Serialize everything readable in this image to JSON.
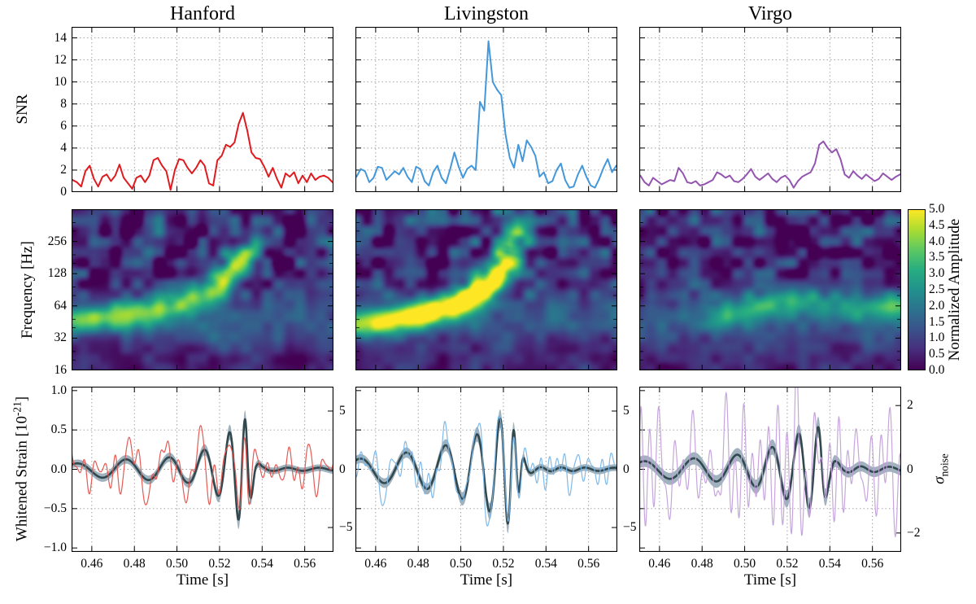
{
  "figure": {
    "background": "#ffffff",
    "columns": [
      {
        "title": "Hanford",
        "color": "#df1b1f",
        "noisy_color": "#e4524c"
      },
      {
        "title": "Livingston",
        "color": "#4298db",
        "noisy_color": "#79b6e8"
      },
      {
        "title": "Virgo",
        "color": "#9355b0",
        "noisy_color": "#c3a1da"
      }
    ]
  },
  "chart_data": {
    "type": "heatmap",
    "description": "3x3 multi-panel gravitational-wave detection figure: rows = matched-filter SNR (line), time-frequency normalized amplitude (heatmap, viridis), whitened strain with waveform reconstruction (line); columns = Hanford, Livingston, Virgo detectors",
    "time_axis": {
      "label": "Time [s]",
      "lim": [
        0.4505,
        0.5735
      ],
      "ticks": [
        0.46,
        0.48,
        0.5,
        0.52,
        0.54,
        0.56
      ],
      "tick_labels": [
        "0.46",
        "0.48",
        "0.50",
        "0.52",
        "0.54",
        "0.56"
      ]
    },
    "snr_row": {
      "type": "line",
      "ylabel": "SNR",
      "ylim": [
        0,
        15
      ],
      "yticks": [
        0,
        2,
        4,
        6,
        8,
        10,
        12,
        14
      ],
      "grid": true,
      "t0": 0.451,
      "dt": 0.002,
      "series": [
        {
          "detector": "Hanford",
          "peak_snr": 7.2,
          "peak_time": 0.531,
          "values": [
            1.1,
            0.9,
            0.5,
            1.9,
            2.4,
            1.2,
            0.5,
            1.4,
            1.6,
            1.0,
            1.5,
            2.5,
            1.3,
            0.8,
            0.3,
            1.3,
            1.5,
            0.9,
            1.5,
            2.9,
            3.1,
            2.4,
            1.9,
            0.2,
            2.0,
            3.0,
            2.9,
            2.2,
            1.7,
            2.2,
            2.9,
            2.4,
            0.8,
            0.6,
            2.9,
            3.3,
            4.3,
            4.1,
            4.5,
            6.2,
            7.2,
            5.6,
            3.6,
            3.1,
            3.0,
            2.3,
            1.4,
            2.2,
            1.2,
            0.4,
            1.7,
            1.4,
            1.8,
            0.8,
            1.5,
            0.9,
            1.7,
            1.1,
            1.4,
            1.5,
            1.3,
            0.9
          ]
        },
        {
          "detector": "Livingston",
          "peak_snr": 13.7,
          "peak_time": 0.513,
          "values": [
            1.4,
            2.1,
            1.9,
            0.9,
            1.3,
            2.3,
            2.2,
            1.1,
            1.5,
            1.9,
            1.6,
            2.2,
            1.4,
            0.9,
            2.3,
            2.1,
            1.0,
            0.6,
            1.8,
            2.4,
            1.3,
            0.8,
            2.1,
            3.6,
            2.3,
            1.3,
            2.1,
            2.4,
            2.0,
            8.2,
            7.4,
            13.7,
            10.0,
            9.3,
            8.8,
            5.2,
            3.1,
            2.2,
            4.3,
            2.8,
            4.7,
            4.1,
            3.3,
            1.4,
            1.8,
            0.8,
            1.0,
            2.0,
            2.6,
            1.1,
            0.4,
            0.5,
            1.6,
            2.4,
            1.4,
            0.6,
            0.4,
            1.2,
            2.2,
            3.0,
            1.8,
            2.4
          ]
        },
        {
          "detector": "Virgo",
          "peak_snr": 4.6,
          "peak_time": 0.537,
          "values": [
            1.5,
            0.9,
            0.6,
            1.3,
            1.0,
            0.7,
            0.9,
            1.1,
            1.0,
            2.2,
            1.7,
            0.9,
            0.8,
            1.0,
            0.6,
            0.7,
            0.9,
            1.1,
            1.8,
            1.6,
            1.3,
            1.5,
            1.0,
            0.9,
            1.2,
            1.6,
            2.1,
            1.4,
            1.1,
            1.4,
            1.7,
            1.2,
            0.9,
            1.3,
            1.5,
            1.1,
            0.4,
            1.0,
            1.4,
            1.6,
            1.8,
            2.6,
            4.3,
            4.6,
            4.0,
            3.6,
            3.9,
            3.0,
            1.6,
            1.3,
            1.9,
            1.5,
            1.2,
            1.6,
            1.3,
            1.0,
            1.2,
            1.7,
            1.4,
            1.1,
            1.4,
            1.6
          ]
        }
      ]
    },
    "spectrogram_row": {
      "type": "heatmap",
      "ylabel": "Frequency [Hz]",
      "yscale": "log2",
      "ylim_hz": [
        16,
        512
      ],
      "yticks": [
        16,
        32,
        64,
        128,
        256
      ],
      "minor_ticks_hz": [
        20,
        24,
        40,
        48,
        80,
        96,
        160,
        192,
        320,
        384
      ],
      "colorbar": {
        "label": "Normalized Amplitude",
        "min": 0,
        "max": 5,
        "colormap": "viridis",
        "tick_labels": [
          "5.0",
          "4.5",
          "4.0",
          "3.5",
          "3.0",
          "2.5",
          "2.0",
          "1.5",
          "1.0",
          "0.5",
          "0.0"
        ]
      },
      "panels": [
        {
          "detector": "Hanford",
          "noise_seed": 11,
          "mottle": 1.0,
          "base": 1.0,
          "chirp_track": [
            [
              0.452,
              46,
              2.6
            ],
            [
              0.468,
              50,
              2.7
            ],
            [
              0.486,
              55,
              2.8
            ],
            [
              0.5,
              62,
              2.6
            ],
            [
              0.51,
              74,
              2.8
            ],
            [
              0.518,
              95,
              3.2
            ],
            [
              0.523,
              120,
              3.8
            ],
            [
              0.527,
              148,
              4.3
            ],
            [
              0.53,
              168,
              4.1
            ],
            [
              0.533,
              190,
              3.0
            ],
            [
              0.536,
              220,
              1.8
            ]
          ]
        },
        {
          "detector": "Livingston",
          "noise_seed": 23,
          "mottle": 1.0,
          "base": 1.0,
          "chirp_track": [
            [
              0.452,
              42,
              3.2
            ],
            [
              0.468,
              47,
              3.8
            ],
            [
              0.484,
              54,
              4.6
            ],
            [
              0.496,
              64,
              5.0
            ],
            [
              0.506,
              80,
              5.3
            ],
            [
              0.513,
              100,
              5.3
            ],
            [
              0.518,
              128,
              5.0
            ],
            [
              0.521,
              160,
              4.0
            ],
            [
              0.523,
              205,
              3.2
            ],
            [
              0.5245,
              260,
              2.7
            ],
            [
              0.526,
              330,
              2.2
            ]
          ]
        },
        {
          "detector": "Virgo",
          "noise_seed": 37,
          "mottle": 0.9,
          "base": 0.9,
          "chirp_track": [
            [
              0.488,
              50,
              1.5
            ],
            [
              0.498,
              56,
              1.9
            ],
            [
              0.508,
              63,
              2.2
            ],
            [
              0.518,
              70,
              2.3
            ],
            [
              0.528,
              73,
              2.0
            ],
            [
              0.54,
              66,
              1.5
            ],
            [
              0.554,
              58,
              1.4
            ],
            [
              0.568,
              62,
              2.0
            ],
            [
              0.574,
              66,
              2.4
            ]
          ]
        }
      ]
    },
    "strain_row": {
      "type": "line",
      "ylabel_parts": {
        "pre": "Whitened Strain  [10",
        "sup": "-21",
        "post": "]"
      },
      "ylim": [
        -1.05,
        1.05
      ],
      "ytick_labels": [
        "1.0",
        "0.5",
        "0.0",
        "−0.5",
        "−1.0"
      ],
      "yticks": [
        1.0,
        0.5,
        0.0,
        -0.5,
        -1.0
      ],
      "grid_y": [
        0.5,
        0.0,
        -0.5
      ],
      "right_label_parts": {
        "sigma": "σ",
        "sub": "noise"
      },
      "recon_color": "#31484e",
      "band_color": "#8fa4b2",
      "panels": [
        {
          "detector": "Hanford",
          "merger_time": 0.5325,
          "right_tick_labels": [
            "5",
            "0",
            "−5"
          ],
          "right_tick_sigma": [
            5,
            0,
            -5
          ],
          "sigma_in_strain": 0.148,
          "freq_track_hz": [
            [
              0.451,
              40
            ],
            [
              0.47,
              44
            ],
            [
              0.49,
              50
            ],
            [
              0.505,
              60
            ],
            [
              0.515,
              73
            ],
            [
              0.522,
              92
            ],
            [
              0.527,
              118
            ],
            [
              0.53,
              148
            ],
            [
              0.5325,
              185
            ],
            [
              0.535,
              150
            ],
            [
              0.54,
              80
            ],
            [
              0.574,
              60
            ]
          ],
          "envelope": [
            [
              0.451,
              0.07
            ],
            [
              0.47,
              0.12
            ],
            [
              0.49,
              0.14
            ],
            [
              0.505,
              0.17
            ],
            [
              0.515,
              0.27
            ],
            [
              0.522,
              0.38
            ],
            [
              0.527,
              0.55
            ],
            [
              0.53,
              0.7
            ],
            [
              0.5325,
              0.62
            ],
            [
              0.535,
              0.34
            ],
            [
              0.5375,
              0.1
            ],
            [
              0.54,
              0.04
            ],
            [
              0.545,
              0.02
            ],
            [
              0.574,
              0.02
            ]
          ],
          "noise_rms": 0.17,
          "noise_seed": 7,
          "signal_in_data": 1.0,
          "band": [
            0.04,
            0.12
          ]
        },
        {
          "detector": "Livingston",
          "merger_time": 0.524,
          "right_tick_labels": [
            "5",
            "0",
            "−5"
          ],
          "right_tick_sigma": [
            5,
            0,
            -5
          ],
          "sigma_in_strain": 0.148,
          "freq_track_hz": [
            [
              0.451,
              42
            ],
            [
              0.46,
              45
            ],
            [
              0.47,
              48
            ],
            [
              0.48,
              52
            ],
            [
              0.49,
              58
            ],
            [
              0.5,
              66
            ],
            [
              0.508,
              78
            ],
            [
              0.515,
              95
            ],
            [
              0.519,
              118
            ],
            [
              0.5225,
              155
            ],
            [
              0.525,
              200
            ],
            [
              0.528,
              230
            ],
            [
              0.532,
              120
            ],
            [
              0.574,
              60
            ]
          ],
          "envelope": [
            [
              0.451,
              0.13
            ],
            [
              0.46,
              0.16
            ],
            [
              0.47,
              0.2
            ],
            [
              0.48,
              0.23
            ],
            [
              0.49,
              0.28
            ],
            [
              0.5,
              0.37
            ],
            [
              0.508,
              0.45
            ],
            [
              0.515,
              0.56
            ],
            [
              0.519,
              0.66
            ],
            [
              0.5215,
              0.72
            ],
            [
              0.524,
              0.6
            ],
            [
              0.526,
              0.38
            ],
            [
              0.5285,
              0.2
            ],
            [
              0.531,
              0.07
            ],
            [
              0.535,
              0.03
            ],
            [
              0.54,
              0.025
            ],
            [
              0.574,
              0.02
            ]
          ],
          "noise_rms": 0.15,
          "noise_seed": 19,
          "signal_in_data": 1.0,
          "band": [
            0.04,
            0.12
          ]
        },
        {
          "detector": "Virgo",
          "merger_time": 0.5365,
          "right_tick_labels": [
            "2",
            "0",
            "−2"
          ],
          "right_tick_sigma": [
            2,
            0,
            -2
          ],
          "sigma_in_strain": 0.405,
          "freq_track_hz": [
            [
              0.451,
              40
            ],
            [
              0.47,
              44
            ],
            [
              0.49,
              50
            ],
            [
              0.505,
              60
            ],
            [
              0.515,
              72
            ],
            [
              0.524,
              88
            ],
            [
              0.53,
              108
            ],
            [
              0.536,
              135
            ],
            [
              0.54,
              100
            ],
            [
              0.574,
              60
            ]
          ],
          "envelope": [
            [
              0.451,
              0.1
            ],
            [
              0.47,
              0.13
            ],
            [
              0.49,
              0.16
            ],
            [
              0.505,
              0.22
            ],
            [
              0.515,
              0.3
            ],
            [
              0.522,
              0.42
            ],
            [
              0.528,
              0.48
            ],
            [
              0.532,
              0.5
            ],
            [
              0.536,
              0.56
            ],
            [
              0.539,
              0.28
            ],
            [
              0.543,
              0.1
            ],
            [
              0.547,
              0.04
            ],
            [
              0.574,
              0.03
            ]
          ],
          "noise_rms": 0.42,
          "noise_seed": 31,
          "signal_in_data": 0.55,
          "band": [
            0.06,
            0.13
          ]
        }
      ]
    }
  }
}
